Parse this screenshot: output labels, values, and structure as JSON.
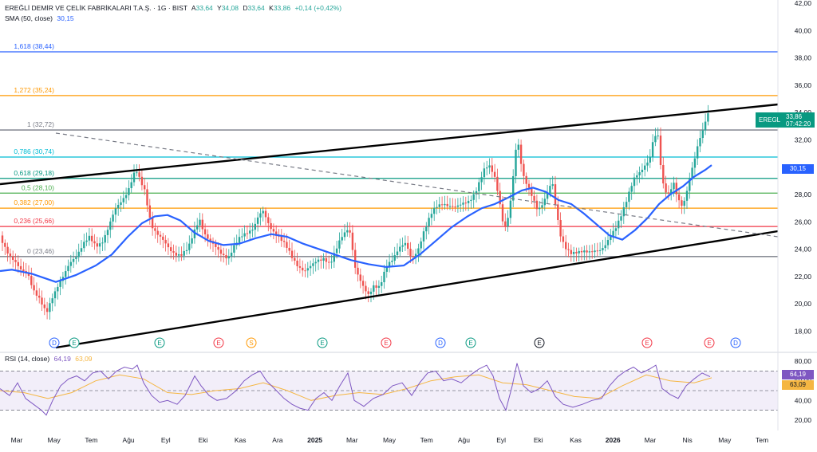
{
  "header": {
    "symbol_title": "EREĞLİ DEMİR VE ÇELİK FABRİKALARI T.A.Ş. · 1G · BIST",
    "ohlc": [
      {
        "k": "A",
        "v": "33,64"
      },
      {
        "k": "Y",
        "v": "34,08"
      },
      {
        "k": "D",
        "v": "33,64"
      },
      {
        "k": "K",
        "v": "33,86"
      }
    ],
    "change": "+0,14 (+0,42%)",
    "sma_label": "SMA (50, close)",
    "sma_value": "30,15",
    "rsi_label": "RSI (14, close)",
    "rsi_value": "64,19",
    "rsi_ma_value": "63,09"
  },
  "price_badge": {
    "ticker": "EREGL",
    "price": "33,86",
    "countdown": "07:42:20"
  },
  "sma_badge": "30,15",
  "rsi_badges": [
    "64,19",
    "63,09"
  ],
  "colors": {
    "up": "#26a69a",
    "down": "#ef5350",
    "sma": "#2962ff",
    "rsi": "#7e57c2",
    "rsi_ma": "#f5b642",
    "channel": "#000000"
  },
  "chart_data": {
    "type": "line",
    "price_axis": {
      "ylim": [
        17.5,
        42
      ],
      "ticks": [
        "42,00",
        "40,00",
        "38,00",
        "36,00",
        "34,00",
        "32,00",
        "30,00",
        "28,00",
        "26,00",
        "24,00",
        "22,00",
        "20,00",
        "18,00"
      ]
    },
    "rsi_axis": {
      "ylim": [
        15,
        85
      ],
      "ticks": [
        "80,00",
        "60,00",
        "40,00",
        "20,00"
      ]
    },
    "x_ticks": [
      "Mar",
      "May",
      "Tem",
      "Ağu",
      "Eyl",
      "Eki",
      "Kas",
      "Ara",
      "2025",
      "Mar",
      "May",
      "Tem",
      "Ağu",
      "Eyl",
      "Eki",
      "Kas",
      "2026",
      "Mar",
      "Nis",
      "May",
      "Tem"
    ],
    "fib_levels": [
      {
        "label": "0 (23,46)",
        "value": 23.46,
        "color": "#787b86"
      },
      {
        "label": "0,236 (25,66)",
        "value": 25.66,
        "color": "#f23645"
      },
      {
        "label": "0,382 (27,00)",
        "value": 27.0,
        "color": "#ff9800"
      },
      {
        "label": "0,5 (28,10)",
        "value": 28.1,
        "color": "#4caf50"
      },
      {
        "label": "0,618 (29,18)",
        "value": 29.18,
        "color": "#089981"
      },
      {
        "label": "0,786 (30,74)",
        "value": 30.74,
        "color": "#00bcd4"
      },
      {
        "label": "1 (32,72)",
        "value": 32.72,
        "color": "#787b86"
      },
      {
        "label": "1,272 (35,24)",
        "value": 35.24,
        "color": "#ff9800"
      },
      {
        "label": "1,618 (38,44)",
        "value": 38.44,
        "color": "#2962ff"
      }
    ],
    "price_path": [
      [
        0,
        25.0
      ],
      [
        12,
        23.5
      ],
      [
        25,
        22.5
      ],
      [
        35,
        22.3
      ],
      [
        42,
        21.0
      ],
      [
        50,
        20.2
      ],
      [
        58,
        19.3
      ],
      [
        65,
        20.5
      ],
      [
        72,
        21.3
      ],
      [
        80,
        22.0
      ],
      [
        88,
        23.0
      ],
      [
        96,
        23.6
      ],
      [
        104,
        24.4
      ],
      [
        112,
        24.8
      ],
      [
        120,
        24.2
      ],
      [
        128,
        24.6
      ],
      [
        136,
        25.6
      ],
      [
        144,
        26.8
      ],
      [
        152,
        27.5
      ],
      [
        160,
        28.3
      ],
      [
        166,
        29.2
      ],
      [
        170,
        29.8
      ],
      [
        176,
        28.9
      ],
      [
        182,
        28.2
      ],
      [
        186,
        26.8
      ],
      [
        190,
        25.8
      ],
      [
        196,
        25.2
      ],
      [
        204,
        24.6
      ],
      [
        212,
        24.0
      ],
      [
        220,
        23.7
      ],
      [
        228,
        23.6
      ],
      [
        236,
        24.0
      ],
      [
        244,
        25.4
      ],
      [
        250,
        26.3
      ],
      [
        256,
        25.2
      ],
      [
        262,
        24.6
      ],
      [
        270,
        24.1
      ],
      [
        278,
        23.7
      ],
      [
        286,
        23.4
      ],
      [
        294,
        24.2
      ],
      [
        302,
        24.9
      ],
      [
        310,
        25.3
      ],
      [
        318,
        25.6
      ],
      [
        324,
        26.4
      ],
      [
        330,
        26.7
      ],
      [
        336,
        25.9
      ],
      [
        342,
        25.4
      ],
      [
        350,
        24.9
      ],
      [
        358,
        24.2
      ],
      [
        366,
        23.4
      ],
      [
        374,
        22.8
      ],
      [
        382,
        22.4
      ],
      [
        390,
        22.7
      ],
      [
        398,
        23.2
      ],
      [
        406,
        23.4
      ],
      [
        414,
        22.9
      ],
      [
        420,
        23.7
      ],
      [
        428,
        24.9
      ],
      [
        436,
        25.6
      ],
      [
        440,
        25.1
      ],
      [
        444,
        22.8
      ],
      [
        450,
        21.8
      ],
      [
        456,
        21.1
      ],
      [
        462,
        20.7
      ],
      [
        468,
        21.4
      ],
      [
        476,
        21.2
      ],
      [
        484,
        22.6
      ],
      [
        492,
        23.3
      ],
      [
        500,
        24.2
      ],
      [
        508,
        24.4
      ],
      [
        516,
        23.2
      ],
      [
        524,
        24.0
      ],
      [
        530,
        25.2
      ],
      [
        536,
        26.0
      ],
      [
        542,
        26.7
      ],
      [
        548,
        27.1
      ],
      [
        556,
        27.4
      ],
      [
        564,
        27.2
      ],
      [
        572,
        27.0
      ],
      [
        580,
        27.3
      ],
      [
        588,
        27.6
      ],
      [
        596,
        28.2
      ],
      [
        602,
        29.0
      ],
      [
        608,
        29.9
      ],
      [
        614,
        30.1
      ],
      [
        620,
        29.4
      ],
      [
        626,
        27.6
      ],
      [
        630,
        26.0
      ],
      [
        634,
        25.5
      ],
      [
        638,
        26.5
      ],
      [
        644,
        29.7
      ],
      [
        648,
        32.4
      ],
      [
        652,
        30.8
      ],
      [
        656,
        29.4
      ],
      [
        662,
        28.5
      ],
      [
        668,
        27.6
      ],
      [
        674,
        26.8
      ],
      [
        680,
        27.4
      ],
      [
        686,
        28.2
      ],
      [
        692,
        29.0
      ],
      [
        696,
        27.2
      ],
      [
        702,
        25.0
      ],
      [
        708,
        24.2
      ],
      [
        716,
        23.8
      ],
      [
        726,
        23.7
      ],
      [
        736,
        23.8
      ],
      [
        746,
        24.0
      ],
      [
        754,
        23.9
      ],
      [
        760,
        24.3
      ],
      [
        766,
        25.0
      ],
      [
        772,
        25.7
      ],
      [
        778,
        26.5
      ],
      [
        784,
        27.3
      ],
      [
        790,
        28.3
      ],
      [
        796,
        29.3
      ],
      [
        802,
        29.7
      ],
      [
        808,
        30.2
      ],
      [
        814,
        30.5
      ],
      [
        818,
        31.7
      ],
      [
        824,
        32.6
      ],
      [
        828,
        30.2
      ],
      [
        832,
        28.5
      ],
      [
        838,
        28.1
      ],
      [
        844,
        28.9
      ],
      [
        850,
        27.5
      ],
      [
        856,
        27.0
      ],
      [
        862,
        28.6
      ],
      [
        866,
        29.8
      ],
      [
        870,
        30.5
      ],
      [
        874,
        31.5
      ],
      [
        878,
        32.2
      ],
      [
        882,
        32.7
      ],
      [
        886,
        33.8
      ],
      [
        890,
        33.86
      ]
    ],
    "sma_path": [
      [
        0,
        22.4
      ],
      [
        15,
        22.5
      ],
      [
        40,
        22.2
      ],
      [
        70,
        21.6
      ],
      [
        95,
        22.1
      ],
      [
        120,
        22.8
      ],
      [
        140,
        23.6
      ],
      [
        160,
        24.9
      ],
      [
        178,
        25.9
      ],
      [
        194,
        26.4
      ],
      [
        210,
        26.5
      ],
      [
        226,
        26.1
      ],
      [
        244,
        25.2
      ],
      [
        262,
        24.6
      ],
      [
        280,
        24.3
      ],
      [
        300,
        24.4
      ],
      [
        320,
        24.8
      ],
      [
        340,
        25.1
      ],
      [
        360,
        24.9
      ],
      [
        380,
        24.4
      ],
      [
        400,
        24.0
      ],
      [
        420,
        23.6
      ],
      [
        440,
        23.2
      ],
      [
        462,
        22.9
      ],
      [
        484,
        22.7
      ],
      [
        506,
        22.8
      ],
      [
        526,
        23.6
      ],
      [
        546,
        24.6
      ],
      [
        566,
        25.6
      ],
      [
        586,
        26.4
      ],
      [
        604,
        27.0
      ],
      [
        620,
        27.3
      ],
      [
        638,
        27.8
      ],
      [
        654,
        28.3
      ],
      [
        668,
        28.5
      ],
      [
        684,
        28.2
      ],
      [
        700,
        27.6
      ],
      [
        716,
        27.3
      ],
      [
        732,
        26.6
      ],
      [
        748,
        25.8
      ],
      [
        764,
        25.0
      ],
      [
        780,
        24.7
      ],
      [
        796,
        25.4
      ],
      [
        812,
        26.3
      ],
      [
        826,
        27.3
      ],
      [
        840,
        28.0
      ],
      [
        856,
        28.6
      ],
      [
        870,
        29.3
      ],
      [
        884,
        29.8
      ],
      [
        892,
        30.15
      ]
    ],
    "rsi_path": [
      [
        0,
        52
      ],
      [
        12,
        45
      ],
      [
        22,
        58
      ],
      [
        32,
        42
      ],
      [
        42,
        36
      ],
      [
        52,
        30
      ],
      [
        58,
        25
      ],
      [
        66,
        40
      ],
      [
        76,
        55
      ],
      [
        86,
        62
      ],
      [
        96,
        65
      ],
      [
        106,
        60
      ],
      [
        116,
        68
      ],
      [
        126,
        70
      ],
      [
        136,
        62
      ],
      [
        146,
        70
      ],
      [
        156,
        74
      ],
      [
        166,
        72
      ],
      [
        172,
        76
      ],
      [
        180,
        58
      ],
      [
        190,
        45
      ],
      [
        200,
        38
      ],
      [
        210,
        40
      ],
      [
        222,
        36
      ],
      [
        232,
        45
      ],
      [
        244,
        65
      ],
      [
        252,
        55
      ],
      [
        262,
        45
      ],
      [
        272,
        40
      ],
      [
        284,
        42
      ],
      [
        296,
        50
      ],
      [
        306,
        60
      ],
      [
        316,
        66
      ],
      [
        326,
        70
      ],
      [
        334,
        60
      ],
      [
        344,
        52
      ],
      [
        356,
        42
      ],
      [
        366,
        36
      ],
      [
        376,
        32
      ],
      [
        386,
        30
      ],
      [
        396,
        42
      ],
      [
        406,
        48
      ],
      [
        416,
        40
      ],
      [
        426,
        55
      ],
      [
        436,
        68
      ],
      [
        444,
        40
      ],
      [
        456,
        34
      ],
      [
        468,
        42
      ],
      [
        480,
        46
      ],
      [
        492,
        55
      ],
      [
        504,
        58
      ],
      [
        516,
        45
      ],
      [
        526,
        58
      ],
      [
        536,
        68
      ],
      [
        546,
        70
      ],
      [
        556,
        60
      ],
      [
        566,
        62
      ],
      [
        578,
        58
      ],
      [
        590,
        66
      ],
      [
        600,
        72
      ],
      [
        610,
        76
      ],
      [
        618,
        65
      ],
      [
        626,
        42
      ],
      [
        634,
        30
      ],
      [
        642,
        55
      ],
      [
        648,
        78
      ],
      [
        656,
        55
      ],
      [
        666,
        48
      ],
      [
        676,
        52
      ],
      [
        686,
        60
      ],
      [
        696,
        44
      ],
      [
        706,
        36
      ],
      [
        718,
        33
      ],
      [
        730,
        36
      ],
      [
        742,
        40
      ],
      [
        754,
        42
      ],
      [
        764,
        55
      ],
      [
        774,
        64
      ],
      [
        784,
        70
      ],
      [
        794,
        74
      ],
      [
        804,
        68
      ],
      [
        814,
        72
      ],
      [
        822,
        76
      ],
      [
        830,
        52
      ],
      [
        840,
        46
      ],
      [
        850,
        42
      ],
      [
        860,
        55
      ],
      [
        870,
        62
      ],
      [
        880,
        68
      ],
      [
        890,
        64.19
      ]
    ],
    "rsi_ma_path": [
      [
        0,
        50
      ],
      [
        30,
        48
      ],
      [
        60,
        42
      ],
      [
        90,
        48
      ],
      [
        120,
        60
      ],
      [
        150,
        66
      ],
      [
        180,
        62
      ],
      [
        210,
        48
      ],
      [
        240,
        46
      ],
      [
        270,
        50
      ],
      [
        300,
        52
      ],
      [
        330,
        58
      ],
      [
        360,
        50
      ],
      [
        390,
        40
      ],
      [
        420,
        45
      ],
      [
        450,
        48
      ],
      [
        480,
        46
      ],
      [
        510,
        52
      ],
      [
        540,
        60
      ],
      [
        570,
        64
      ],
      [
        600,
        66
      ],
      [
        630,
        58
      ],
      [
        660,
        56
      ],
      [
        690,
        50
      ],
      [
        720,
        44
      ],
      [
        750,
        42
      ],
      [
        780,
        55
      ],
      [
        810,
        66
      ],
      [
        840,
        60
      ],
      [
        870,
        58
      ],
      [
        892,
        63.09
      ]
    ],
    "events": [
      {
        "letter": "D",
        "x": 68,
        "color": "#2962ff"
      },
      {
        "letter": "E",
        "x": 93,
        "color": "#089981"
      },
      {
        "letter": "E",
        "x": 200,
        "color": "#089981"
      },
      {
        "letter": "E",
        "x": 274,
        "color": "#f23645"
      },
      {
        "letter": "S",
        "x": 315,
        "color": "#ff9800"
      },
      {
        "letter": "E",
        "x": 404,
        "color": "#089981"
      },
      {
        "letter": "E",
        "x": 484,
        "color": "#f23645"
      },
      {
        "letter": "D",
        "x": 552,
        "color": "#2962ff"
      },
      {
        "letter": "E",
        "x": 590,
        "color": "#089981"
      },
      {
        "letter": "E",
        "x": 676,
        "color": "#131722"
      },
      {
        "letter": "E",
        "x": 811,
        "color": "#f23645"
      },
      {
        "letter": "E",
        "x": 889,
        "color": "#f23645"
      },
      {
        "letter": "D",
        "x": 922,
        "color": "#2962ff"
      }
    ]
  }
}
